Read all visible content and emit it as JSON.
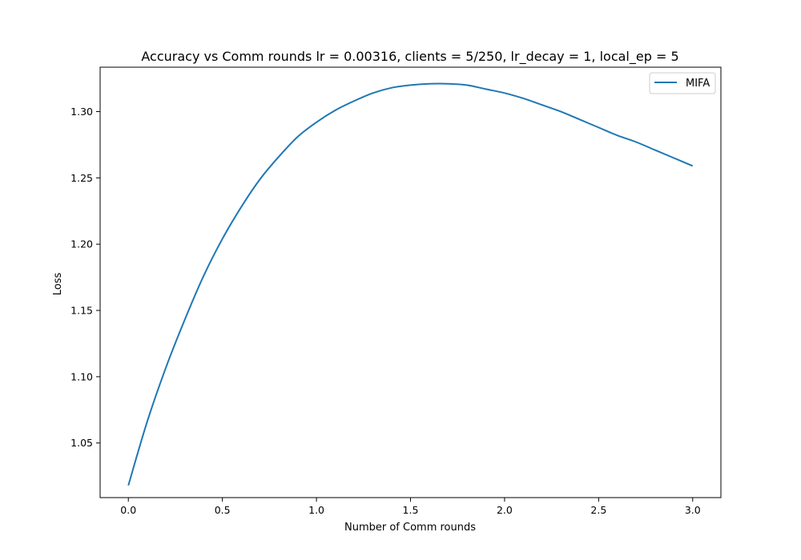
{
  "chart_data": {
    "type": "line",
    "title": "Accuracy vs Comm rounds lr = 0.00316, clients = 5/250, lr_decay = 1, local_ep = 5",
    "xlabel": "Number of Comm rounds",
    "ylabel": "Loss",
    "xlim": [
      -0.15,
      3.15
    ],
    "ylim": [
      1.0088,
      1.3335
    ],
    "xticks": [
      0.0,
      0.5,
      1.0,
      1.5,
      2.0,
      2.5,
      3.0
    ],
    "xtick_labels": [
      "0.0",
      "0.5",
      "1.0",
      "1.5",
      "2.0",
      "2.5",
      "3.0"
    ],
    "yticks": [
      1.05,
      1.1,
      1.15,
      1.2,
      1.25,
      1.3
    ],
    "ytick_labels": [
      "1.05",
      "1.10",
      "1.15",
      "1.20",
      "1.25",
      "1.30"
    ],
    "grid": false,
    "legend_position": "top-right",
    "series": [
      {
        "name": "MIFA",
        "color": "#1f77b4",
        "x": [
          0.0,
          0.1,
          0.2,
          0.3,
          0.4,
          0.5,
          0.6,
          0.7,
          0.8,
          0.9,
          1.0,
          1.1,
          1.2,
          1.3,
          1.4,
          1.5,
          1.6,
          1.7,
          1.8,
          1.9,
          2.0,
          2.1,
          2.2,
          2.3,
          2.4,
          2.5,
          2.6,
          2.7,
          2.8,
          2.9,
          3.0
        ],
        "y": [
          1.018,
          1.066,
          1.107,
          1.143,
          1.176,
          1.204,
          1.228,
          1.249,
          1.266,
          1.281,
          1.292,
          1.301,
          1.308,
          1.314,
          1.318,
          1.32,
          1.321,
          1.321,
          1.32,
          1.317,
          1.314,
          1.31,
          1.305,
          1.3,
          1.294,
          1.288,
          1.282,
          1.277,
          1.271,
          1.265,
          1.259
        ]
      }
    ]
  }
}
